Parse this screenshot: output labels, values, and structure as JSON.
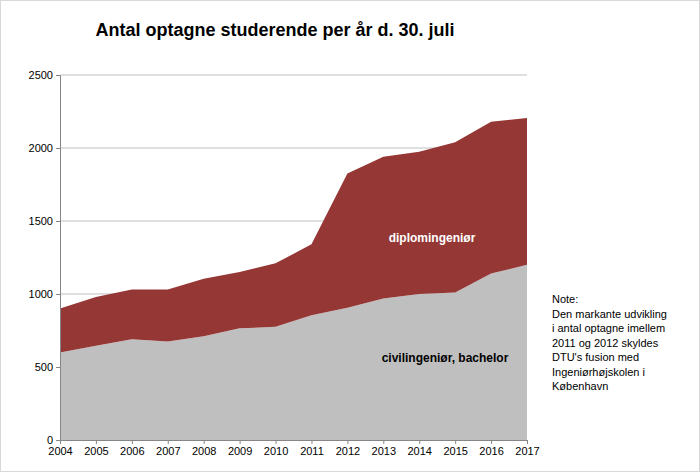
{
  "chart_data": {
    "type": "area",
    "title": "Antal optagne studerende per år d. 30. juli",
    "categories": [
      "2004",
      "2005",
      "2006",
      "2007",
      "2008",
      "2009",
      "2010",
      "2011",
      "2012",
      "2013",
      "2014",
      "2015",
      "2016",
      "2017"
    ],
    "series": [
      {
        "name": "civilingeniør, bachelor",
        "color": "#bfbfbf",
        "values": [
          600,
          645,
          690,
          675,
          710,
          765,
          775,
          855,
          905,
          970,
          1000,
          1010,
          1140,
          1200
        ]
      },
      {
        "name": "diplomingeniør",
        "color": "#953735",
        "values": [
          300,
          335,
          340,
          355,
          395,
          385,
          435,
          485,
          920,
          970,
          975,
          1030,
          1040,
          1005
        ]
      }
    ],
    "stacked": true,
    "ylim": [
      0,
      2500
    ],
    "yticks": [
      0,
      500,
      1000,
      1500,
      2000,
      2500
    ],
    "grid": true,
    "annotations": [
      "Note:",
      "Den markante udvikling",
      "i antal optagne imellem",
      "2011 og 2012 skyldes",
      "DTU's fusion med",
      "Ingeniørhøjskolen i",
      "København"
    ]
  }
}
